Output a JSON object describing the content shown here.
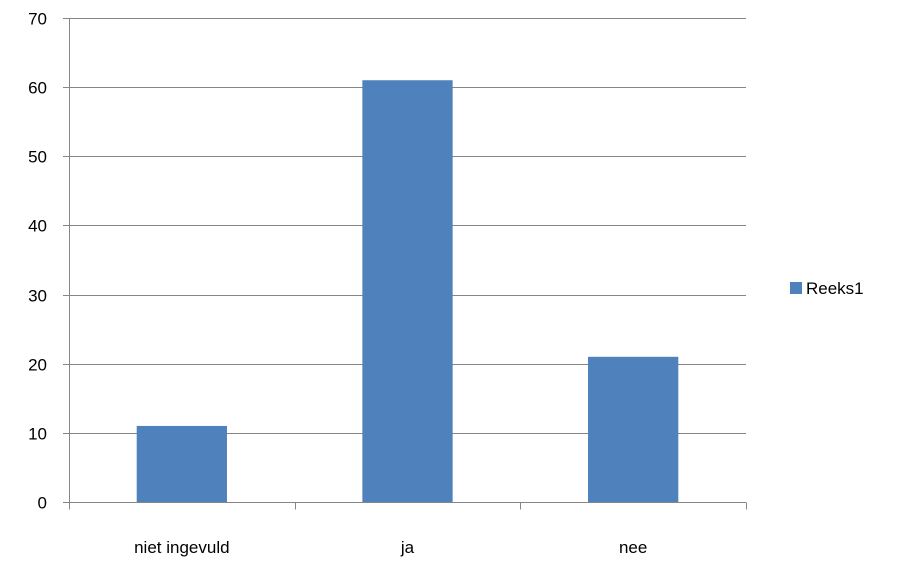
{
  "chart_data": {
    "type": "bar",
    "categories": [
      "niet ingevuld",
      "ja",
      "nee"
    ],
    "series": [
      {
        "name": "Reeks1",
        "values": [
          11,
          61,
          21
        ],
        "color": "#4f81bd"
      }
    ],
    "ylim": [
      0,
      70
    ],
    "yticks": [
      0,
      10,
      20,
      30,
      40,
      50,
      60,
      70
    ],
    "grid": true,
    "legend": "right"
  }
}
